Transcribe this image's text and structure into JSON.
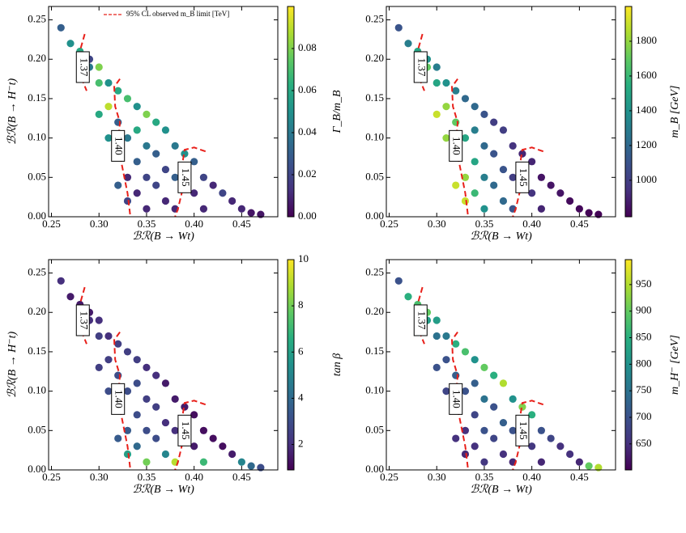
{
  "chart_data": [
    {
      "type": "scatter",
      "x_label": "ℬℛ(B → Wt)",
      "y_label": "ℬℛ(B → H⁻t)",
      "colorbar_label": "Γ_B/m_B",
      "colormap": "viridis",
      "x": [
        0.26,
        0.27,
        0.28,
        0.29,
        0.3,
        0.29,
        0.3,
        0.31,
        0.31,
        0.32,
        0.32,
        0.32,
        0.33,
        0.33,
        0.33,
        0.33,
        0.34,
        0.34,
        0.34,
        0.34,
        0.35,
        0.35,
        0.35,
        0.35,
        0.36,
        0.36,
        0.36,
        0.37,
        0.37,
        0.37,
        0.38,
        0.38,
        0.38,
        0.39,
        0.39,
        0.4,
        0.4,
        0.41,
        0.41,
        0.42,
        0.43,
        0.44,
        0.45,
        0.46,
        0.47,
        0.3,
        0.31,
        0.32
      ],
      "y": [
        0.24,
        0.22,
        0.21,
        0.19,
        0.17,
        0.2,
        0.19,
        0.17,
        0.14,
        0.16,
        0.12,
        0.08,
        0.15,
        0.1,
        0.05,
        0.02,
        0.14,
        0.11,
        0.07,
        0.03,
        0.13,
        0.09,
        0.05,
        0.01,
        0.12,
        0.08,
        0.04,
        0.11,
        0.06,
        0.02,
        0.09,
        0.05,
        0.01,
        0.08,
        0.04,
        0.07,
        0.03,
        0.05,
        0.01,
        0.04,
        0.03,
        0.02,
        0.01,
        0.005,
        0.003,
        0.13,
        0.1,
        0.04
      ],
      "c": [
        0.03,
        0.05,
        0.06,
        0.04,
        0.07,
        0.02,
        0.08,
        0.05,
        0.09,
        0.06,
        0.03,
        0.02,
        0.07,
        0.04,
        0.01,
        0.02,
        0.05,
        0.06,
        0.03,
        0.01,
        0.08,
        0.04,
        0.02,
        0.01,
        0.06,
        0.03,
        0.02,
        0.05,
        0.02,
        0.01,
        0.04,
        0.03,
        0.01,
        0.05,
        0.02,
        0.03,
        0.01,
        0.02,
        0.01,
        0.01,
        0.02,
        0.01,
        0.01,
        0.005,
        0.005,
        0.06,
        0.05,
        0.03
      ],
      "xlim": [
        0.247,
        0.488
      ],
      "ylim": [
        0,
        0.267
      ],
      "clim": [
        0,
        0.1
      ],
      "xticks": [
        {
          "value": 0.25,
          "label": "0.25"
        },
        {
          "value": 0.3,
          "label": "0.30"
        },
        {
          "value": 0.35,
          "label": "0.35"
        },
        {
          "value": 0.4,
          "label": "0.40"
        },
        {
          "value": 0.45,
          "label": "0.45"
        }
      ],
      "yticks": [
        {
          "value": 0,
          "label": "0.00"
        },
        {
          "value": 0.05,
          "label": "0.05"
        },
        {
          "value": 0.1,
          "label": "0.10"
        },
        {
          "value": 0.15,
          "label": "0.15"
        },
        {
          "value": 0.2,
          "label": "0.20"
        },
        {
          "value": 0.25,
          "label": "0.25"
        }
      ],
      "cticks": [
        {
          "value": 0,
          "label": "0.00"
        },
        {
          "value": 0.02,
          "label": "0.02"
        },
        {
          "value": 0.04,
          "label": "0.04"
        },
        {
          "value": 0.06,
          "label": "0.06"
        },
        {
          "value": 0.08,
          "label": "0.08"
        }
      ],
      "contour_color": "#e8201a",
      "contours": [
        {
          "level": 1.37,
          "x": [
            0.285,
            0.281,
            0.283,
            0.282,
            0.287
          ],
          "y": [
            0.232,
            0.215,
            0.19,
            0.175,
            0.16
          ]
        },
        {
          "level": {
            "value": 1.4,
            "label": "1.40"
          },
          "x": [
            0.322,
            0.316,
            0.317,
            0.322,
            0.32,
            0.325,
            0.33,
            0.333
          ],
          "y": [
            0.175,
            0.165,
            0.14,
            0.12,
            0.09,
            0.06,
            0.03,
            0
          ]
        },
        {
          "level": 1.45,
          "x": [
            0.412,
            0.4,
            0.39,
            0.388,
            0.39,
            0.387,
            0.383,
            0.38
          ],
          "y": [
            0.083,
            0.088,
            0.085,
            0.07,
            0.05,
            0.03,
            0.01,
            0
          ]
        }
      ],
      "legend": {
        "text": "95% CL observed m_B limit [TeV]",
        "corner": "upper right"
      }
    },
    {
      "type": "scatter",
      "x_label": "ℬℛ(B → Wt)",
      "colorbar_label": "m_B [GeV]",
      "colormap": "viridis",
      "x": [
        0.26,
        0.27,
        0.28,
        0.29,
        0.3,
        0.29,
        0.3,
        0.31,
        0.31,
        0.32,
        0.32,
        0.32,
        0.33,
        0.33,
        0.33,
        0.33,
        0.34,
        0.34,
        0.34,
        0.34,
        0.35,
        0.35,
        0.35,
        0.35,
        0.36,
        0.36,
        0.36,
        0.37,
        0.37,
        0.37,
        0.38,
        0.38,
        0.38,
        0.39,
        0.39,
        0.4,
        0.4,
        0.41,
        0.41,
        0.42,
        0.43,
        0.44,
        0.45,
        0.46,
        0.47,
        0.3,
        0.31,
        0.32
      ],
      "y": [
        0.24,
        0.22,
        0.21,
        0.19,
        0.17,
        0.2,
        0.19,
        0.17,
        0.14,
        0.16,
        0.12,
        0.08,
        0.15,
        0.1,
        0.05,
        0.02,
        0.14,
        0.11,
        0.07,
        0.03,
        0.13,
        0.09,
        0.05,
        0.01,
        0.12,
        0.08,
        0.04,
        0.11,
        0.06,
        0.02,
        0.09,
        0.05,
        0.01,
        0.08,
        0.04,
        0.07,
        0.03,
        0.05,
        0.01,
        0.04,
        0.03,
        0.02,
        0.01,
        0.005,
        0.003,
        0.13,
        0.1,
        0.04
      ],
      "c": [
        1100,
        1300,
        1500,
        1700,
        1500,
        1400,
        1300,
        1400,
        1800,
        1300,
        1700,
        1900,
        1200,
        1500,
        1800,
        1900,
        1200,
        1300,
        1500,
        1600,
        1100,
        1200,
        1300,
        1400,
        1000,
        1100,
        1200,
        1000,
        1100,
        1200,
        950,
        1000,
        1100,
        900,
        950,
        900,
        950,
        850,
        900,
        850,
        850,
        820,
        810,
        800,
        800,
        1900,
        1800,
        1900
      ],
      "xlim": [
        0.247,
        0.488
      ],
      "ylim": [
        0,
        0.267
      ],
      "clim": [
        790,
        2000
      ],
      "xticks": [
        {
          "value": 0.25,
          "label": "0.25"
        },
        {
          "value": 0.3,
          "label": "0.30"
        },
        {
          "value": 0.35,
          "label": "0.35"
        },
        {
          "value": 0.4,
          "label": "0.40"
        },
        {
          "value": 0.45,
          "label": "0.45"
        }
      ],
      "yticks": [
        {
          "value": 0,
          "label": "0.00"
        },
        {
          "value": 0.05,
          "label": "0.05"
        },
        {
          "value": 0.1,
          "label": "0.10"
        },
        {
          "value": 0.15,
          "label": "0.15"
        },
        {
          "value": 0.2,
          "label": "0.20"
        },
        {
          "value": 0.25,
          "label": "0.25"
        }
      ],
      "cticks": [
        1000,
        1200,
        1400,
        1600,
        1800
      ],
      "contour_color": "#e8201a",
      "contours": [
        {
          "level": 1.37,
          "x": [
            0.285,
            0.281,
            0.283,
            0.282,
            0.287
          ],
          "y": [
            0.232,
            0.215,
            0.19,
            0.175,
            0.16
          ]
        },
        {
          "level": {
            "value": 1.4,
            "label": "1.40"
          },
          "x": [
            0.322,
            0.316,
            0.317,
            0.322,
            0.32,
            0.325,
            0.33,
            0.333
          ],
          "y": [
            0.175,
            0.165,
            0.14,
            0.12,
            0.09,
            0.06,
            0.03,
            0
          ]
        },
        {
          "level": 1.45,
          "x": [
            0.412,
            0.4,
            0.39,
            0.388,
            0.39,
            0.387,
            0.383,
            0.38
          ],
          "y": [
            0.083,
            0.088,
            0.085,
            0.07,
            0.05,
            0.03,
            0.01,
            0
          ]
        }
      ]
    },
    {
      "type": "scatter",
      "x_label": "ℬℛ(B → Wt)",
      "y_label": "ℬℛ(B → H⁻t)",
      "colorbar_label": "tan β",
      "colormap": "viridis",
      "x": [
        0.26,
        0.27,
        0.28,
        0.29,
        0.3,
        0.29,
        0.3,
        0.31,
        0.31,
        0.32,
        0.32,
        0.32,
        0.33,
        0.33,
        0.33,
        0.33,
        0.34,
        0.34,
        0.34,
        0.34,
        0.35,
        0.35,
        0.35,
        0.35,
        0.36,
        0.36,
        0.36,
        0.37,
        0.37,
        0.37,
        0.38,
        0.38,
        0.38,
        0.39,
        0.39,
        0.4,
        0.4,
        0.41,
        0.41,
        0.42,
        0.43,
        0.44,
        0.45,
        0.46,
        0.47,
        0.3,
        0.31,
        0.32
      ],
      "y": [
        0.24,
        0.22,
        0.21,
        0.19,
        0.17,
        0.2,
        0.19,
        0.17,
        0.14,
        0.16,
        0.12,
        0.08,
        0.15,
        0.1,
        0.05,
        0.02,
        0.14,
        0.11,
        0.07,
        0.03,
        0.13,
        0.09,
        0.05,
        0.01,
        0.12,
        0.08,
        0.04,
        0.11,
        0.06,
        0.02,
        0.09,
        0.05,
        0.01,
        0.08,
        0.04,
        0.07,
        0.03,
        0.05,
        0.01,
        0.04,
        0.03,
        0.02,
        0.01,
        0.005,
        0.003,
        0.13,
        0.1,
        0.04
      ],
      "c": [
        2,
        1.5,
        1.5,
        2,
        2.5,
        1.5,
        2,
        2,
        2.5,
        2.5,
        3,
        3.5,
        2.5,
        3,
        3.5,
        6,
        2.5,
        3,
        3,
        4,
        2,
        2.5,
        3,
        8,
        2,
        2.5,
        3,
        1.5,
        2,
        5,
        1.5,
        2,
        9,
        1.5,
        2,
        1.2,
        1.5,
        1.2,
        7,
        1.2,
        1.2,
        1.5,
        5,
        4,
        3,
        2.5,
        3,
        3.5
      ],
      "xlim": [
        0.247,
        0.488
      ],
      "ylim": [
        0,
        0.267
      ],
      "clim": [
        0.9,
        10
      ],
      "xticks": [
        {
          "value": 0.25,
          "label": "0.25"
        },
        {
          "value": 0.3,
          "label": "0.30"
        },
        {
          "value": 0.35,
          "label": "0.35"
        },
        {
          "value": 0.4,
          "label": "0.40"
        },
        {
          "value": 0.45,
          "label": "0.45"
        }
      ],
      "yticks": [
        {
          "value": 0,
          "label": "0.00"
        },
        {
          "value": 0.05,
          "label": "0.05"
        },
        {
          "value": 0.1,
          "label": "0.10"
        },
        {
          "value": 0.15,
          "label": "0.15"
        },
        {
          "value": 0.2,
          "label": "0.20"
        },
        {
          "value": 0.25,
          "label": "0.25"
        }
      ],
      "cticks": [
        2,
        4,
        6,
        8,
        10
      ],
      "contour_color": "#e8201a",
      "contours": [
        {
          "level": 1.37,
          "x": [
            0.285,
            0.281,
            0.283,
            0.282,
            0.287
          ],
          "y": [
            0.232,
            0.215,
            0.19,
            0.175,
            0.16
          ]
        },
        {
          "level": {
            "value": 1.4,
            "label": "1.40"
          },
          "x": [
            0.322,
            0.316,
            0.317,
            0.322,
            0.32,
            0.325,
            0.33,
            0.333
          ],
          "y": [
            0.175,
            0.165,
            0.14,
            0.12,
            0.09,
            0.06,
            0.03,
            0
          ]
        },
        {
          "level": 1.45,
          "x": [
            0.412,
            0.4,
            0.39,
            0.388,
            0.39,
            0.387,
            0.383,
            0.38
          ],
          "y": [
            0.083,
            0.088,
            0.085,
            0.07,
            0.05,
            0.03,
            0.01,
            0
          ]
        }
      ]
    },
    {
      "type": "scatter",
      "x_label": "ℬℛ(B → Wt)",
      "colorbar_label": "m_H⁻ [GeV]",
      "colormap": "viridis",
      "x": [
        0.26,
        0.27,
        0.28,
        0.29,
        0.3,
        0.29,
        0.3,
        0.31,
        0.31,
        0.32,
        0.32,
        0.32,
        0.33,
        0.33,
        0.33,
        0.33,
        0.34,
        0.34,
        0.34,
        0.34,
        0.35,
        0.35,
        0.35,
        0.35,
        0.36,
        0.36,
        0.36,
        0.37,
        0.37,
        0.37,
        0.38,
        0.38,
        0.38,
        0.39,
        0.39,
        0.4,
        0.4,
        0.41,
        0.41,
        0.42,
        0.43,
        0.44,
        0.45,
        0.46,
        0.47,
        0.3,
        0.31,
        0.32
      ],
      "y": [
        0.24,
        0.22,
        0.21,
        0.19,
        0.17,
        0.2,
        0.19,
        0.17,
        0.14,
        0.16,
        0.12,
        0.08,
        0.15,
        0.1,
        0.05,
        0.02,
        0.14,
        0.11,
        0.07,
        0.03,
        0.13,
        0.09,
        0.05,
        0.01,
        0.12,
        0.08,
        0.04,
        0.11,
        0.06,
        0.02,
        0.09,
        0.05,
        0.01,
        0.08,
        0.04,
        0.07,
        0.03,
        0.05,
        0.01,
        0.04,
        0.03,
        0.02,
        0.01,
        0.005,
        0.003,
        0.13,
        0.1,
        0.04
      ],
      "c": [
        700,
        850,
        880,
        820,
        750,
        900,
        820,
        760,
        700,
        850,
        720,
        680,
        880,
        700,
        650,
        640,
        800,
        720,
        680,
        650,
        900,
        750,
        700,
        660,
        850,
        700,
        680,
        950,
        720,
        650,
        800,
        700,
        640,
        920,
        680,
        850,
        660,
        700,
        640,
        680,
        650,
        650,
        640,
        900,
        950,
        700,
        680,
        650
      ],
      "xlim": [
        0.247,
        0.488
      ],
      "ylim": [
        0,
        0.267
      ],
      "clim": [
        601,
        997
      ],
      "xticks": [
        {
          "value": 0.25,
          "label": "0.25"
        },
        {
          "value": 0.3,
          "label": "0.30"
        },
        {
          "value": 0.35,
          "label": "0.35"
        },
        {
          "value": 0.4,
          "label": "0.40"
        },
        {
          "value": 0.45,
          "label": "0.45"
        }
      ],
      "yticks": [
        {
          "value": 0,
          "label": "0.00"
        },
        {
          "value": 0.05,
          "label": "0.05"
        },
        {
          "value": 0.1,
          "label": "0.10"
        },
        {
          "value": 0.15,
          "label": "0.15"
        },
        {
          "value": 0.2,
          "label": "0.20"
        },
        {
          "value": 0.25,
          "label": "0.25"
        }
      ],
      "cticks": [
        650,
        700,
        750,
        800,
        850,
        900,
        950
      ],
      "contour_color": "#e8201a",
      "contours": [
        {
          "level": 1.37,
          "x": [
            0.285,
            0.281,
            0.283,
            0.282,
            0.287
          ],
          "y": [
            0.232,
            0.215,
            0.19,
            0.175,
            0.16
          ]
        },
        {
          "level": {
            "value": 1.4,
            "label": "1.40"
          },
          "x": [
            0.322,
            0.316,
            0.317,
            0.322,
            0.32,
            0.325,
            0.33,
            0.333
          ],
          "y": [
            0.175,
            0.165,
            0.14,
            0.12,
            0.09,
            0.06,
            0.03,
            0
          ]
        },
        {
          "level": 1.45,
          "x": [
            0.412,
            0.4,
            0.39,
            0.388,
            0.39,
            0.387,
            0.383,
            0.38
          ],
          "y": [
            0.083,
            0.088,
            0.085,
            0.07,
            0.05,
            0.03,
            0.01,
            0
          ]
        }
      ]
    }
  ]
}
